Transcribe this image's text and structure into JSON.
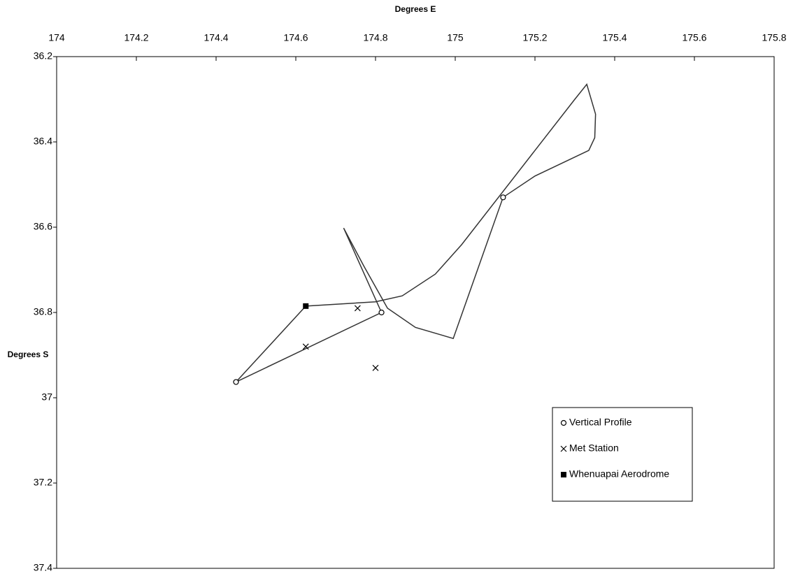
{
  "chart_data": {
    "type": "line",
    "x_label": "Degrees E",
    "y_label": "Degrees S",
    "xlim": [
      174,
      175.8
    ],
    "ylim": [
      36.2,
      37.4
    ],
    "y_inverted": true,
    "x_axis_position": "top",
    "xticks": [
      174,
      174.2,
      174.4,
      174.6,
      174.8,
      175,
      175.2,
      175.4,
      175.6,
      175.8
    ],
    "yticks": [
      36.2,
      36.4,
      36.6,
      36.8,
      37,
      37.2,
      37.4
    ],
    "grid": false,
    "legend": "lower-right",
    "series": [
      {
        "color": "#333333",
        "x": [
          174.625,
          174.45,
          174.815,
          174.72,
          174.77,
          174.83,
          174.9,
          174.995,
          175.12,
          175.2,
          175.335,
          175.35,
          175.352,
          175.33,
          175.3,
          175.2,
          175.016,
          174.95,
          174.867,
          174.8,
          174.625
        ],
        "y": [
          36.785,
          36.963,
          36.8,
          36.602,
          36.69,
          36.79,
          36.835,
          36.861,
          36.53,
          36.48,
          36.42,
          36.39,
          36.335,
          36.265,
          36.3,
          36.42,
          36.641,
          36.71,
          36.761,
          36.775,
          36.785
        ]
      },
      {
        "name": "Vertical Profile",
        "marker": "circle",
        "color": "#000000",
        "x": [
          174.45,
          174.815,
          175.12
        ],
        "y": [
          36.963,
          36.8,
          36.53
        ]
      },
      {
        "name": "Met Station",
        "marker": "x",
        "color": "#000000",
        "x": [
          174.755,
          174.625,
          174.8
        ],
        "y": [
          36.79,
          36.88,
          36.93
        ]
      },
      {
        "name": "Whenuapai Aerodrome",
        "marker": "square",
        "color": "#000000",
        "x": [
          174.625
        ],
        "y": [
          36.785
        ]
      }
    ]
  }
}
